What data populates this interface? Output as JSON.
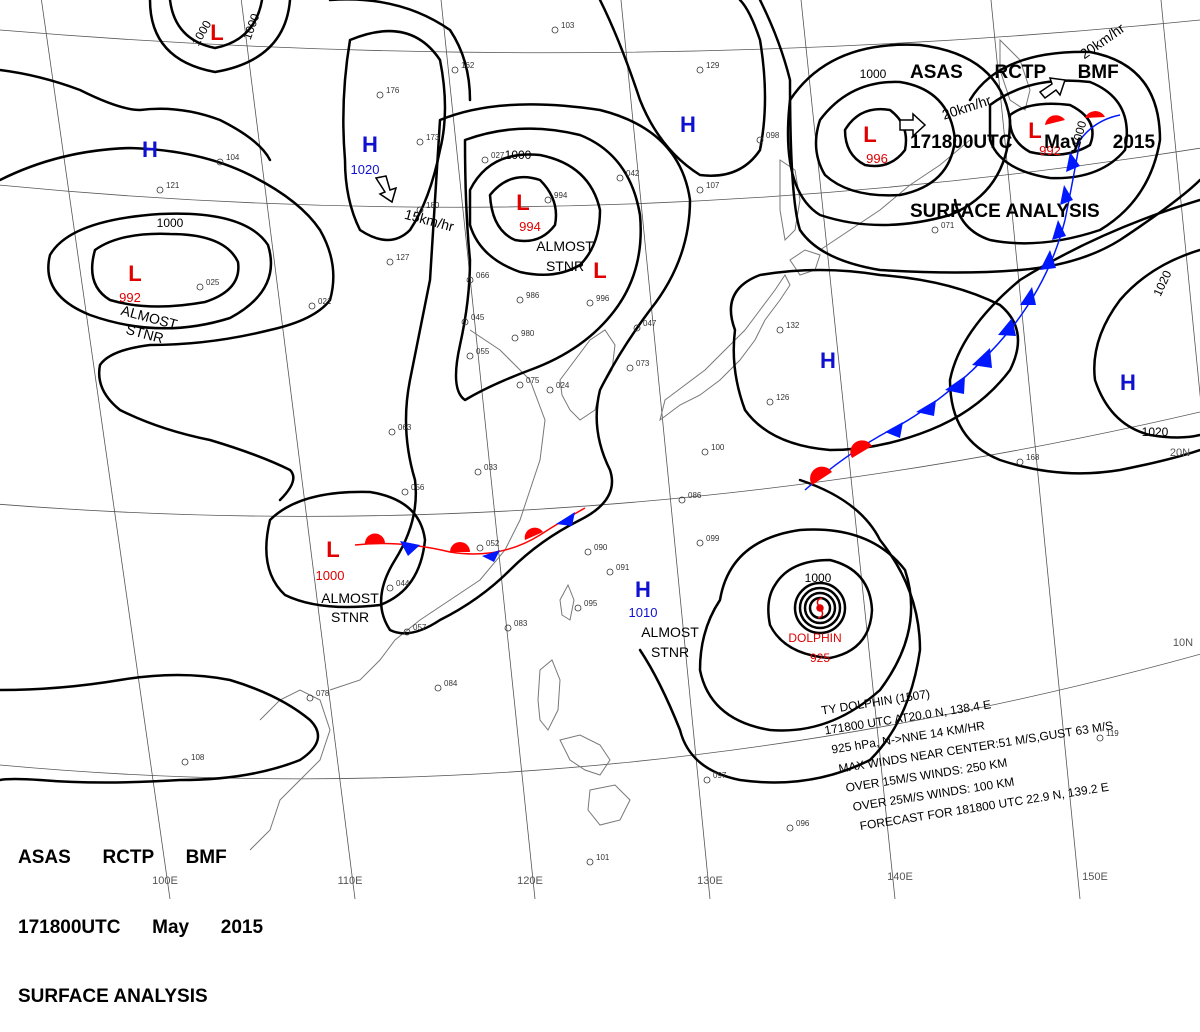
{
  "header": {
    "agency": "ASAS",
    "office": "RCTP",
    "unit": "BMF",
    "time": "171800UTC",
    "month": "May",
    "year": "2015",
    "title": "SURFACE ANALYSIS"
  },
  "colors": {
    "high": "#1010d0",
    "low": "#e00000",
    "isobar": "#000000",
    "grid": "#555555",
    "coast": "#777777",
    "cold_front": "#0018ff",
    "warm_front": "#ff0000"
  },
  "pressure_centers": [
    {
      "type": "H",
      "value": ""
    },
    {
      "type": "H",
      "value": "1020"
    },
    {
      "type": "H",
      "value": ""
    },
    {
      "type": "H",
      "value": ""
    },
    {
      "type": "H",
      "value": ""
    },
    {
      "type": "H",
      "value": "1010"
    },
    {
      "type": "L",
      "value": ""
    },
    {
      "type": "L",
      "value": "992"
    },
    {
      "type": "L",
      "value": "994"
    },
    {
      "type": "L",
      "value": ""
    },
    {
      "type": "L",
      "value": "996"
    },
    {
      "type": "L",
      "value": "992"
    },
    {
      "type": "L",
      "value": "1000"
    }
  ],
  "isobar_labels": [
    "1000",
    "1000",
    "1000",
    "1000",
    "1000",
    "1000",
    "1000",
    "1020",
    "1020"
  ],
  "annotations": {
    "almost_stnr": "ALMOST STNR",
    "motion_north": "15km/hr",
    "motion_east": "20km/hr",
    "motion_ne": "20km/hr"
  },
  "typhoon": {
    "name": "DOLPHIN",
    "pressure": "925",
    "info": [
      "TY  DOLPHIN  (1507)",
      "171800 UTC  AT20.0 N, 138.4 E",
      "925 hPa, N->NNE  14 KM/HR",
      "MAX WINDS NEAR CENTER:51 M/S,GUST 63 M/S",
      "OVER 15M/S WINDS: 250 KM",
      "OVER 25M/S WINDS: 100 KM",
      "FORECAST FOR 181800 UTC 22.9 N, 139.2 E"
    ]
  },
  "graticule": {
    "lon_labels": [
      "100E",
      "110E",
      "120E",
      "130E",
      "140E",
      "150E"
    ],
    "lat_labels": [
      "20N",
      "10N"
    ]
  },
  "station_reports": [
    "994",
    "980",
    "986",
    "996",
    "066",
    "045",
    "055",
    "033",
    "063",
    "052",
    "021",
    "078",
    "083",
    "084",
    "095",
    "090",
    "091",
    "099",
    "086",
    "100",
    "108",
    "097",
    "101",
    "096",
    "103",
    "129",
    "107",
    "126",
    "132",
    "168",
    "042",
    "047",
    "073",
    "075",
    "024",
    "027",
    "025",
    "056",
    "057",
    "044",
    "119",
    "176",
    "173",
    "180",
    "127",
    "162",
    "104",
    "121",
    "071",
    "098"
  ]
}
